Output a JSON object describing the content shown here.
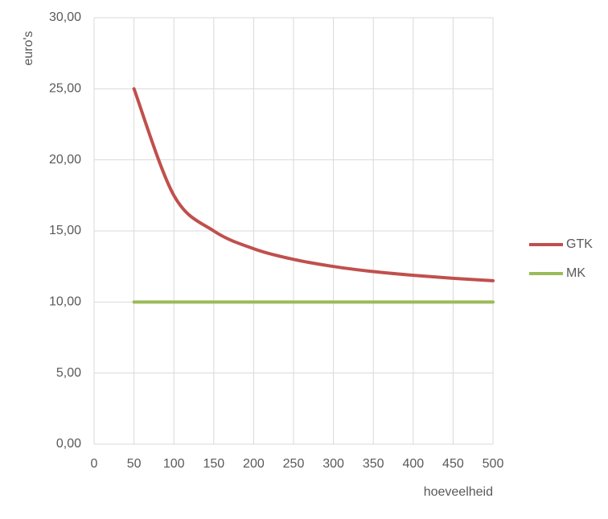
{
  "chart_data": {
    "type": "line",
    "x_label": "hoeveelheid",
    "y_label": "euro's",
    "x": [
      50,
      100,
      150,
      200,
      250,
      300,
      350,
      400,
      450,
      500
    ],
    "series": [
      {
        "name": "GTK",
        "color": "#c0504d",
        "values": [
          25,
          17.5,
          15,
          13.75,
          13,
          12.5,
          12.14,
          11.88,
          11.67,
          11.5
        ]
      },
      {
        "name": "MK",
        "color": "#9bbb59",
        "values": [
          10,
          10,
          10,
          10,
          10,
          10,
          10,
          10,
          10,
          10
        ]
      }
    ],
    "xlim": [
      0,
      500
    ],
    "xticks": [
      0,
      50,
      100,
      150,
      200,
      250,
      300,
      350,
      400,
      450,
      500
    ],
    "ylim": [
      0,
      30
    ],
    "yticks": [
      {
        "value": 0,
        "label": "0,00"
      },
      {
        "value": 5,
        "label": "5,00"
      },
      {
        "value": 10,
        "label": "10,00"
      },
      {
        "value": 15,
        "label": "15,00"
      },
      {
        "value": 20,
        "label": "20,00"
      },
      {
        "value": 25,
        "label": "25,00"
      },
      {
        "value": 30,
        "label": "30,00"
      }
    ],
    "grid": true,
    "legend": "right"
  }
}
